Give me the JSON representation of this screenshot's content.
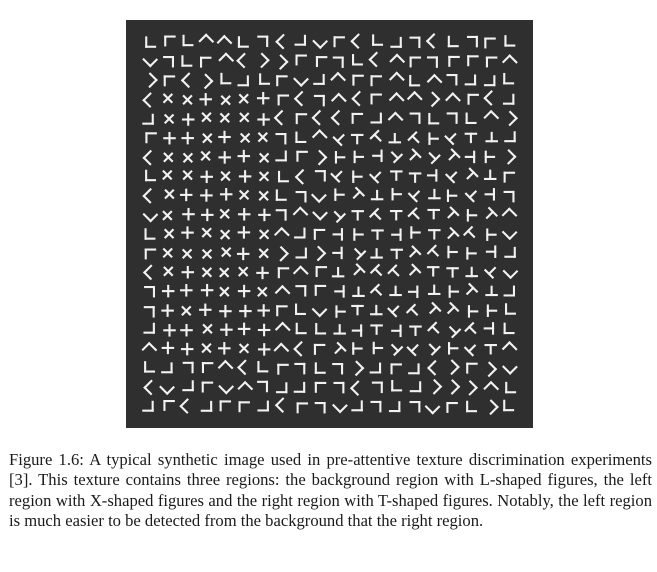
{
  "figure": {
    "caption": "Figure 1.6: A typical synthetic image used in pre-attentive texture discrimination experiments [3]. This texture contains three regions: the background region with L-shaped figures, the left region with X-shaped figures and the right region with T-shaped figures. Notably, the left region is much easier to be detected from the background that the right region.",
    "texture": {
      "background_color": "#2f2f2f",
      "glyph_color": "#f2f2f2",
      "grid": {
        "rows": 20,
        "cols": 20
      },
      "regions": [
        {
          "name": "background",
          "figure_shape": "L"
        },
        {
          "name": "left",
          "figure_shape": "X",
          "rows": [
            3,
            16
          ],
          "cols": [
            1,
            6
          ]
        },
        {
          "name": "right",
          "figure_shape": "T",
          "rows": [
            5,
            16
          ],
          "cols": [
            10,
            18
          ]
        }
      ]
    }
  }
}
